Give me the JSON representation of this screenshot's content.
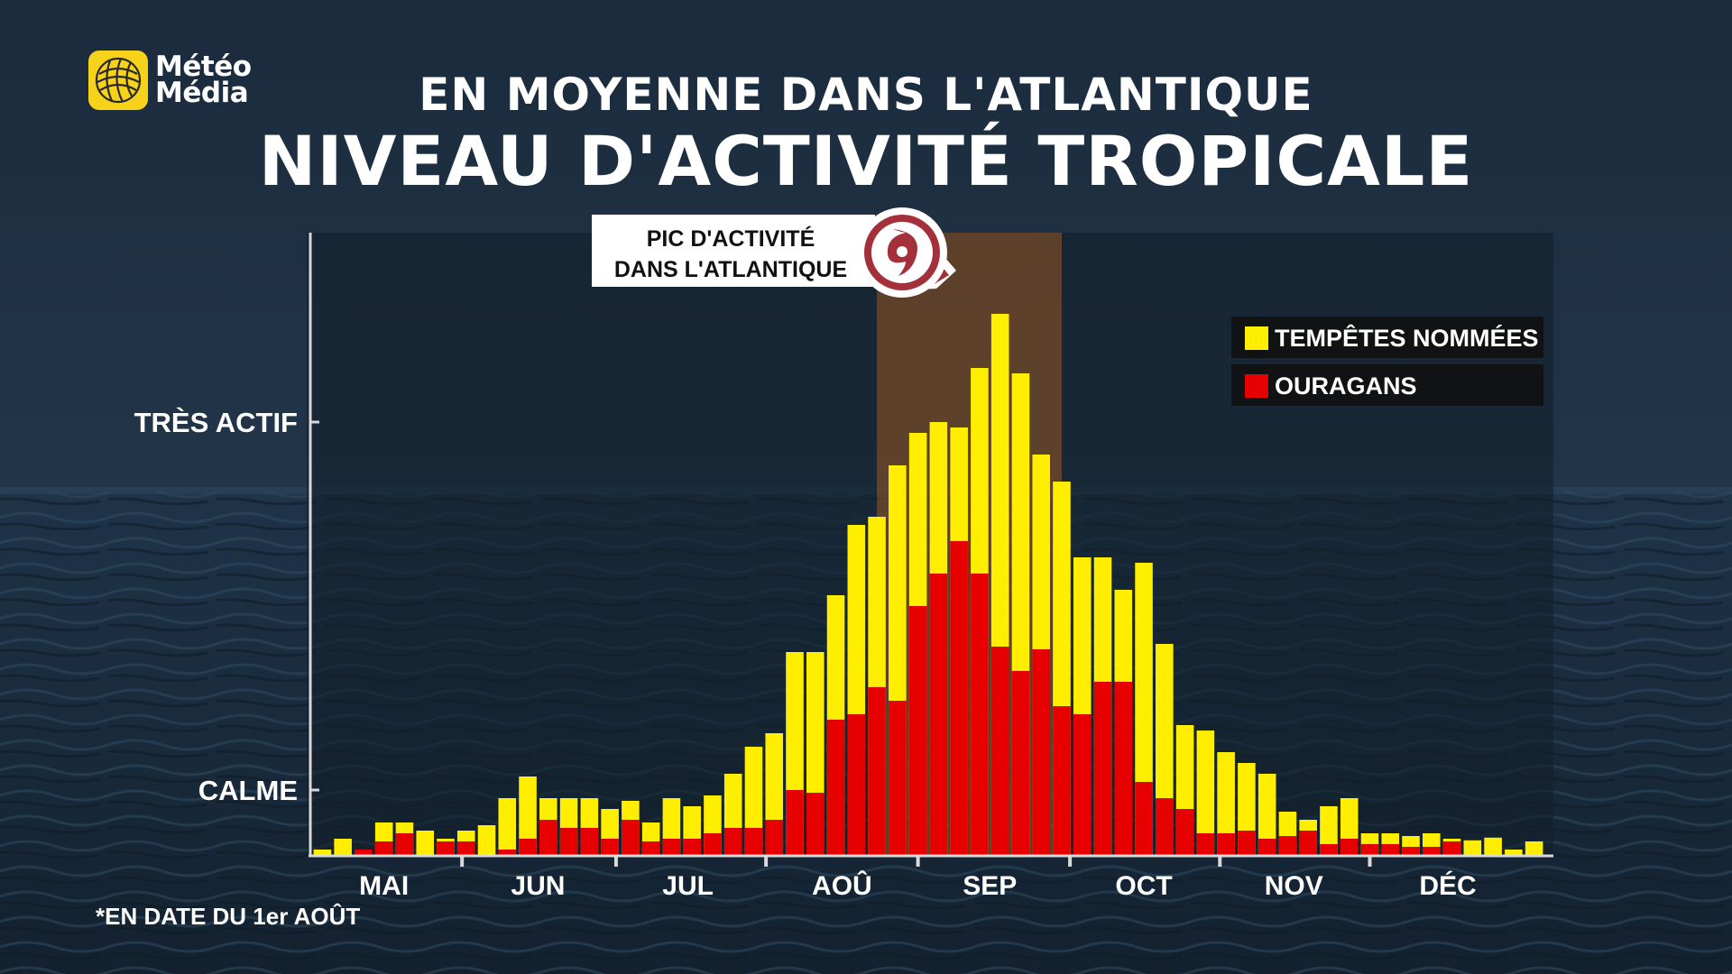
{
  "brand": {
    "line1": "Météo",
    "line2": "Média"
  },
  "header": {
    "subtitle": "EN MOYENNE DANS L'ATLANTIQUE",
    "title": "NIVEAU D'ACTIVITÉ TROPICALE"
  },
  "footnote": "*EN DATE DU 1er AOÛT",
  "colors": {
    "named_storms": "#ffee00",
    "hurricanes": "#e60000",
    "peak_band": "#b4621e",
    "callout_border": "#a4303c"
  },
  "chart_data": {
    "type": "bar",
    "stacked": "overlay",
    "title": "NIVEAU D'ACTIVITÉ TROPICALE",
    "subtitle": "EN MOYENNE DANS L'ATLANTIQUE",
    "xlabel": "",
    "ylabel": "",
    "x_range": [
      0,
      60
    ],
    "y_range": [
      0,
      100
    ],
    "y_ticks": [
      {
        "value": 12,
        "label": "CALME"
      },
      {
        "value": 80,
        "label": "TRÈS ACTIF"
      }
    ],
    "x_ticks": [
      {
        "value": 3.5,
        "label": "MAI"
      },
      {
        "value": 11,
        "label": "JUN"
      },
      {
        "value": 18.3,
        "label": "JUL"
      },
      {
        "value": 25.8,
        "label": "AOÛ"
      },
      {
        "value": 33,
        "label": "SEP"
      },
      {
        "value": 40.5,
        "label": "OCT"
      },
      {
        "value": 47.8,
        "label": "NOV"
      },
      {
        "value": 55.3,
        "label": "DÉC"
      }
    ],
    "month_separators": [
      7.3,
      14.8,
      22.1,
      29.5,
      36.9,
      44.2,
      51.5
    ],
    "highlight": {
      "from": 27.5,
      "to": 36.5,
      "label_line1": "PIC D'ACTIVITÉ",
      "label_line2": "DANS L'ATLANTIQUE"
    },
    "series": [
      {
        "name": "TEMPÊTES NOMMÉES",
        "values": [
          1,
          3,
          0,
          6,
          6,
          4.5,
          3,
          4.5,
          5.5,
          10.5,
          14.5,
          10.5,
          10.5,
          10.5,
          8.5,
          10,
          6,
          10.5,
          9,
          11,
          15,
          20,
          22.5,
          37.5,
          37.5,
          48,
          61,
          62.5,
          72,
          78,
          80,
          79,
          90,
          100,
          89,
          74,
          69,
          55,
          55,
          49,
          54,
          39,
          24,
          23,
          19,
          17,
          15,
          8,
          6.5,
          9,
          10.5,
          4,
          4,
          3.5,
          4,
          3,
          2.7,
          3.2,
          1,
          2.5
        ]
      },
      {
        "name": "OURAGANS",
        "values": [
          0,
          0,
          1,
          2.5,
          4,
          0,
          2.5,
          2.5,
          0,
          1,
          3,
          6.5,
          5,
          5,
          3,
          6.5,
          2.5,
          3,
          3,
          4,
          5,
          5,
          6.5,
          12,
          11.5,
          25,
          26,
          31,
          28.5,
          46,
          52,
          58,
          52,
          38.5,
          34,
          38,
          27.5,
          26,
          32,
          32,
          13.5,
          10.5,
          8.5,
          4,
          4,
          4.5,
          3,
          3.5,
          4.5,
          2,
          3,
          2,
          2,
          1.5,
          1.5,
          2.5,
          0,
          0,
          0,
          0
        ]
      }
    ]
  }
}
